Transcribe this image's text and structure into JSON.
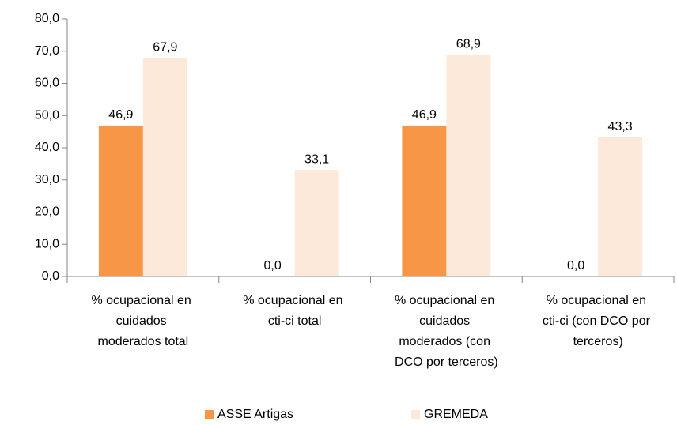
{
  "chart_data": {
    "type": "bar",
    "categories": [
      "% ocupacional en cuidados moderados total",
      "% ocupacional en cti-ci total",
      "% ocupacional en cuidados moderados (con DCO por terceros)",
      "% ocupacional en cti-ci  (con DCO por terceros)"
    ],
    "series": [
      {
        "name": "ASSE Artigas",
        "color": "#f79646",
        "values": [
          46.9,
          0,
          46.9,
          0
        ],
        "value_labels": [
          "46,9",
          "0,0",
          "46,9",
          "0,0"
        ]
      },
      {
        "name": "GREMEDA",
        "color": "#fde9d9",
        "values": [
          67.9,
          33.1,
          68.9,
          43.3
        ],
        "value_labels": [
          "67,9",
          "33,1",
          "68,9",
          "43,3"
        ]
      }
    ],
    "ylim": [
      0,
      80
    ],
    "yticks": [
      {
        "value": 0,
        "label": "0,0"
      },
      {
        "value": 10,
        "label": "10,0"
      },
      {
        "value": 20,
        "label": "20,0"
      },
      {
        "value": 30,
        "label": "30,0"
      },
      {
        "value": 40,
        "label": "40,0"
      },
      {
        "value": 50,
        "label": "50,0"
      },
      {
        "value": 60,
        "label": "60,0"
      },
      {
        "value": 70,
        "label": "70,0"
      },
      {
        "value": 80,
        "label": "80,0"
      }
    ],
    "grid": false,
    "legend": "bottom"
  }
}
